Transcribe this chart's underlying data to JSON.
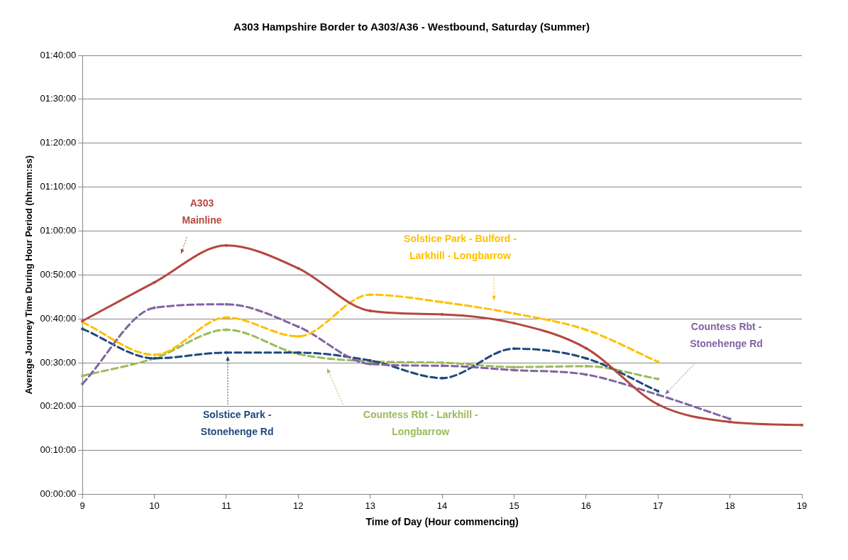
{
  "chart_data": {
    "type": "line",
    "title": "A303 Hampshire Border to A303/A36 - Westbound, Saturday (Summer)",
    "xlabel": "Time of Day (Hour commencing)",
    "ylabel": "Average Journey Time During Hour Period (hh:mm:ss)",
    "x": [
      9,
      10,
      11,
      12,
      13,
      14,
      15,
      16,
      17,
      18,
      19
    ],
    "xlim": [
      9,
      19
    ],
    "xticks": [
      9,
      10,
      11,
      12,
      13,
      14,
      15,
      16,
      17,
      18,
      19
    ],
    "ylim": [
      0,
      100
    ],
    "yticks": [
      {
        "value": 0,
        "label": "00:00:00"
      },
      {
        "value": 10,
        "label": "00:10:00"
      },
      {
        "value": 20,
        "label": "00:20:00"
      },
      {
        "value": 30,
        "label": "00:30:00"
      },
      {
        "value": 40,
        "label": "00:40:00"
      },
      {
        "value": 50,
        "label": "00:50:00"
      },
      {
        "value": 60,
        "label": "01:00:00"
      },
      {
        "value": 70,
        "label": "01:10:00"
      },
      {
        "value": 80,
        "label": "01:20:00"
      },
      {
        "value": 90,
        "label": "01:30:00"
      },
      {
        "value": 100,
        "label": "01:40:00"
      }
    ],
    "grid": "y",
    "legend": false,
    "marker": "square",
    "series": [
      {
        "name": "A303 Mainline",
        "color": "#b5473f",
        "line_style": "solid",
        "values": [
          39.5,
          48.3,
          56.7,
          51.5,
          41.8,
          41,
          39,
          33.3,
          20.5,
          16.5,
          15.8
        ]
      },
      {
        "name": "Solstice Park - Bulford - Larkhill - Longbarrow",
        "color": "#ffc000",
        "line_style": "dashed",
        "values": [
          39.2,
          31.8,
          40.3,
          36,
          45.5,
          43.8,
          41.2,
          37.5,
          30.2,
          null,
          null
        ]
      },
      {
        "name": "Countess Rbt - Stonehenge Rd",
        "color": "#8064a2",
        "line_style": "dashed",
        "values": [
          25.2,
          42.5,
          43.3,
          38.2,
          29.7,
          29.3,
          28.3,
          27.3,
          22.7,
          17.2,
          null
        ]
      },
      {
        "name": "Solstice Park - Stonehenge Rd",
        "color": "#1f497d",
        "line_style": "dashed",
        "values": [
          37.7,
          31,
          32.3,
          32.3,
          30.5,
          26.5,
          33.2,
          31,
          23.5,
          null,
          null
        ]
      },
      {
        "name": "Countess Rbt - Larkhill - Longbarrow",
        "color": "#9bbb59",
        "line_style": "dashed",
        "values": [
          27,
          31,
          37.5,
          32,
          30.3,
          30,
          29,
          29.2,
          26.3,
          null,
          null
        ]
      }
    ]
  }
}
